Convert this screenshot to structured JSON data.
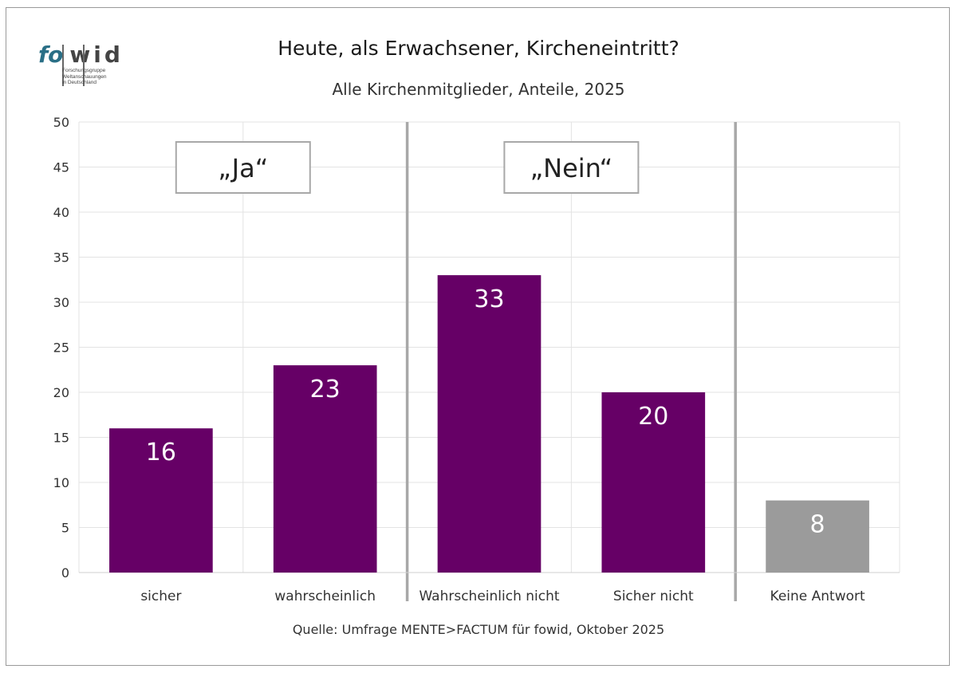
{
  "logo": {
    "brand_prefix": "fo",
    "brand_suffix": "wid",
    "tagline": [
      "Forschungsgruppe",
      "Weltanschauungen",
      "in Deutschland"
    ]
  },
  "chart_data": {
    "type": "bar",
    "title": "Heute, als Erwachsener, Kircheneintritt?",
    "subtitle": "Alle Kirchenmitglieder, Anteile, 2025",
    "xlabel": "",
    "ylabel": "",
    "ylim": [
      0,
      50
    ],
    "yticks": [
      "0",
      "5",
      "10",
      "15",
      "20",
      "25",
      "30",
      "35",
      "40",
      "45",
      "50"
    ],
    "grid": true,
    "categories": [
      "sicher",
      "wahrscheinlich",
      "Wahrscheinlich nicht",
      "Sicher nicht",
      "Keine Antwort"
    ],
    "values": [
      16,
      23,
      33,
      20,
      8
    ],
    "bar_colors": [
      "#660066",
      "#660066",
      "#660066",
      "#660066",
      "#9b9b9b"
    ],
    "group_labels": [
      "„Ja“",
      "„Nein“"
    ],
    "source": "Quelle: Umfrage MENTE>FACTUM für fowid, Oktober 2025"
  }
}
